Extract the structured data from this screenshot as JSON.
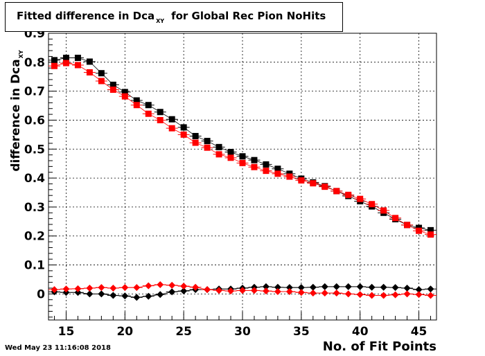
{
  "title": {
    "main": "Fitted difference in Dca",
    "sub": "XY",
    "rest": "for Global Rec Pion NoHits"
  },
  "timestamp": "Wed May 23 11:16:08 2018",
  "chart_data": {
    "type": "scatter",
    "title": "Fitted difference in Dca XY for Global Rec Pion NoHits",
    "xlabel": "No. of Fit Points",
    "ylabel": "difference in Dca XY",
    "ylabel_parts": {
      "main": "difference in Dca",
      "sub": "XY"
    },
    "xlim": [
      13.5,
      46.5
    ],
    "ylim": [
      -0.09,
      0.9
    ],
    "xticks": [
      15,
      20,
      25,
      30,
      35,
      40,
      45
    ],
    "yticks": [
      0,
      0.1,
      0.2,
      0.3,
      0.4,
      0.5,
      0.6,
      0.7,
      0.8,
      0.9
    ],
    "ytick_labels": [
      "0",
      "0.1",
      "0.2",
      "0.3",
      "0.4",
      "0.5",
      "0.6",
      "0.7",
      "0.8",
      "0.9"
    ],
    "grid": true,
    "x": [
      14,
      15,
      16,
      17,
      18,
      19,
      20,
      21,
      22,
      23,
      24,
      25,
      26,
      27,
      28,
      29,
      30,
      31,
      32,
      33,
      34,
      35,
      36,
      37,
      38,
      39,
      40,
      41,
      42,
      43,
      44,
      45,
      46
    ],
    "series": [
      {
        "color": "#000000",
        "marker": "square",
        "values": [
          0.807,
          0.815,
          0.815,
          0.802,
          0.762,
          0.722,
          0.697,
          0.668,
          0.652,
          0.628,
          0.603,
          0.575,
          0.545,
          0.528,
          0.507,
          0.49,
          0.475,
          0.462,
          0.447,
          0.432,
          0.415,
          0.398,
          0.385,
          0.372,
          0.355,
          0.338,
          0.32,
          0.302,
          0.28,
          0.258,
          0.238,
          0.228,
          0.22
        ]
      },
      {
        "color": "#ff0000",
        "marker": "square",
        "values": [
          0.787,
          0.797,
          0.79,
          0.765,
          0.735,
          0.705,
          0.682,
          0.652,
          0.622,
          0.6,
          0.572,
          0.55,
          0.522,
          0.505,
          0.482,
          0.47,
          0.452,
          0.438,
          0.425,
          0.415,
          0.405,
          0.392,
          0.382,
          0.37,
          0.355,
          0.342,
          0.328,
          0.31,
          0.288,
          0.262,
          0.238,
          0.218,
          0.205
        ]
      },
      {
        "color": "#000000",
        "marker": "diamond",
        "values": [
          0.007,
          0.005,
          0.005,
          0.0,
          0.0,
          -0.005,
          -0.007,
          -0.012,
          -0.008,
          -0.002,
          0.007,
          0.01,
          0.015,
          0.015,
          0.017,
          0.017,
          0.02,
          0.023,
          0.025,
          0.023,
          0.022,
          0.022,
          0.023,
          0.025,
          0.025,
          0.025,
          0.025,
          0.023,
          0.023,
          0.022,
          0.02,
          0.015,
          0.017
        ]
      },
      {
        "color": "#ff0000",
        "marker": "diamond",
        "values": [
          0.015,
          0.017,
          0.018,
          0.02,
          0.022,
          0.02,
          0.022,
          0.022,
          0.028,
          0.032,
          0.03,
          0.027,
          0.023,
          0.015,
          0.012,
          0.01,
          0.012,
          0.012,
          0.01,
          0.008,
          0.008,
          0.005,
          0.003,
          0.003,
          0.003,
          0.0,
          -0.002,
          -0.005,
          -0.005,
          -0.003,
          0.0,
          -0.002,
          -0.005
        ]
      }
    ]
  }
}
